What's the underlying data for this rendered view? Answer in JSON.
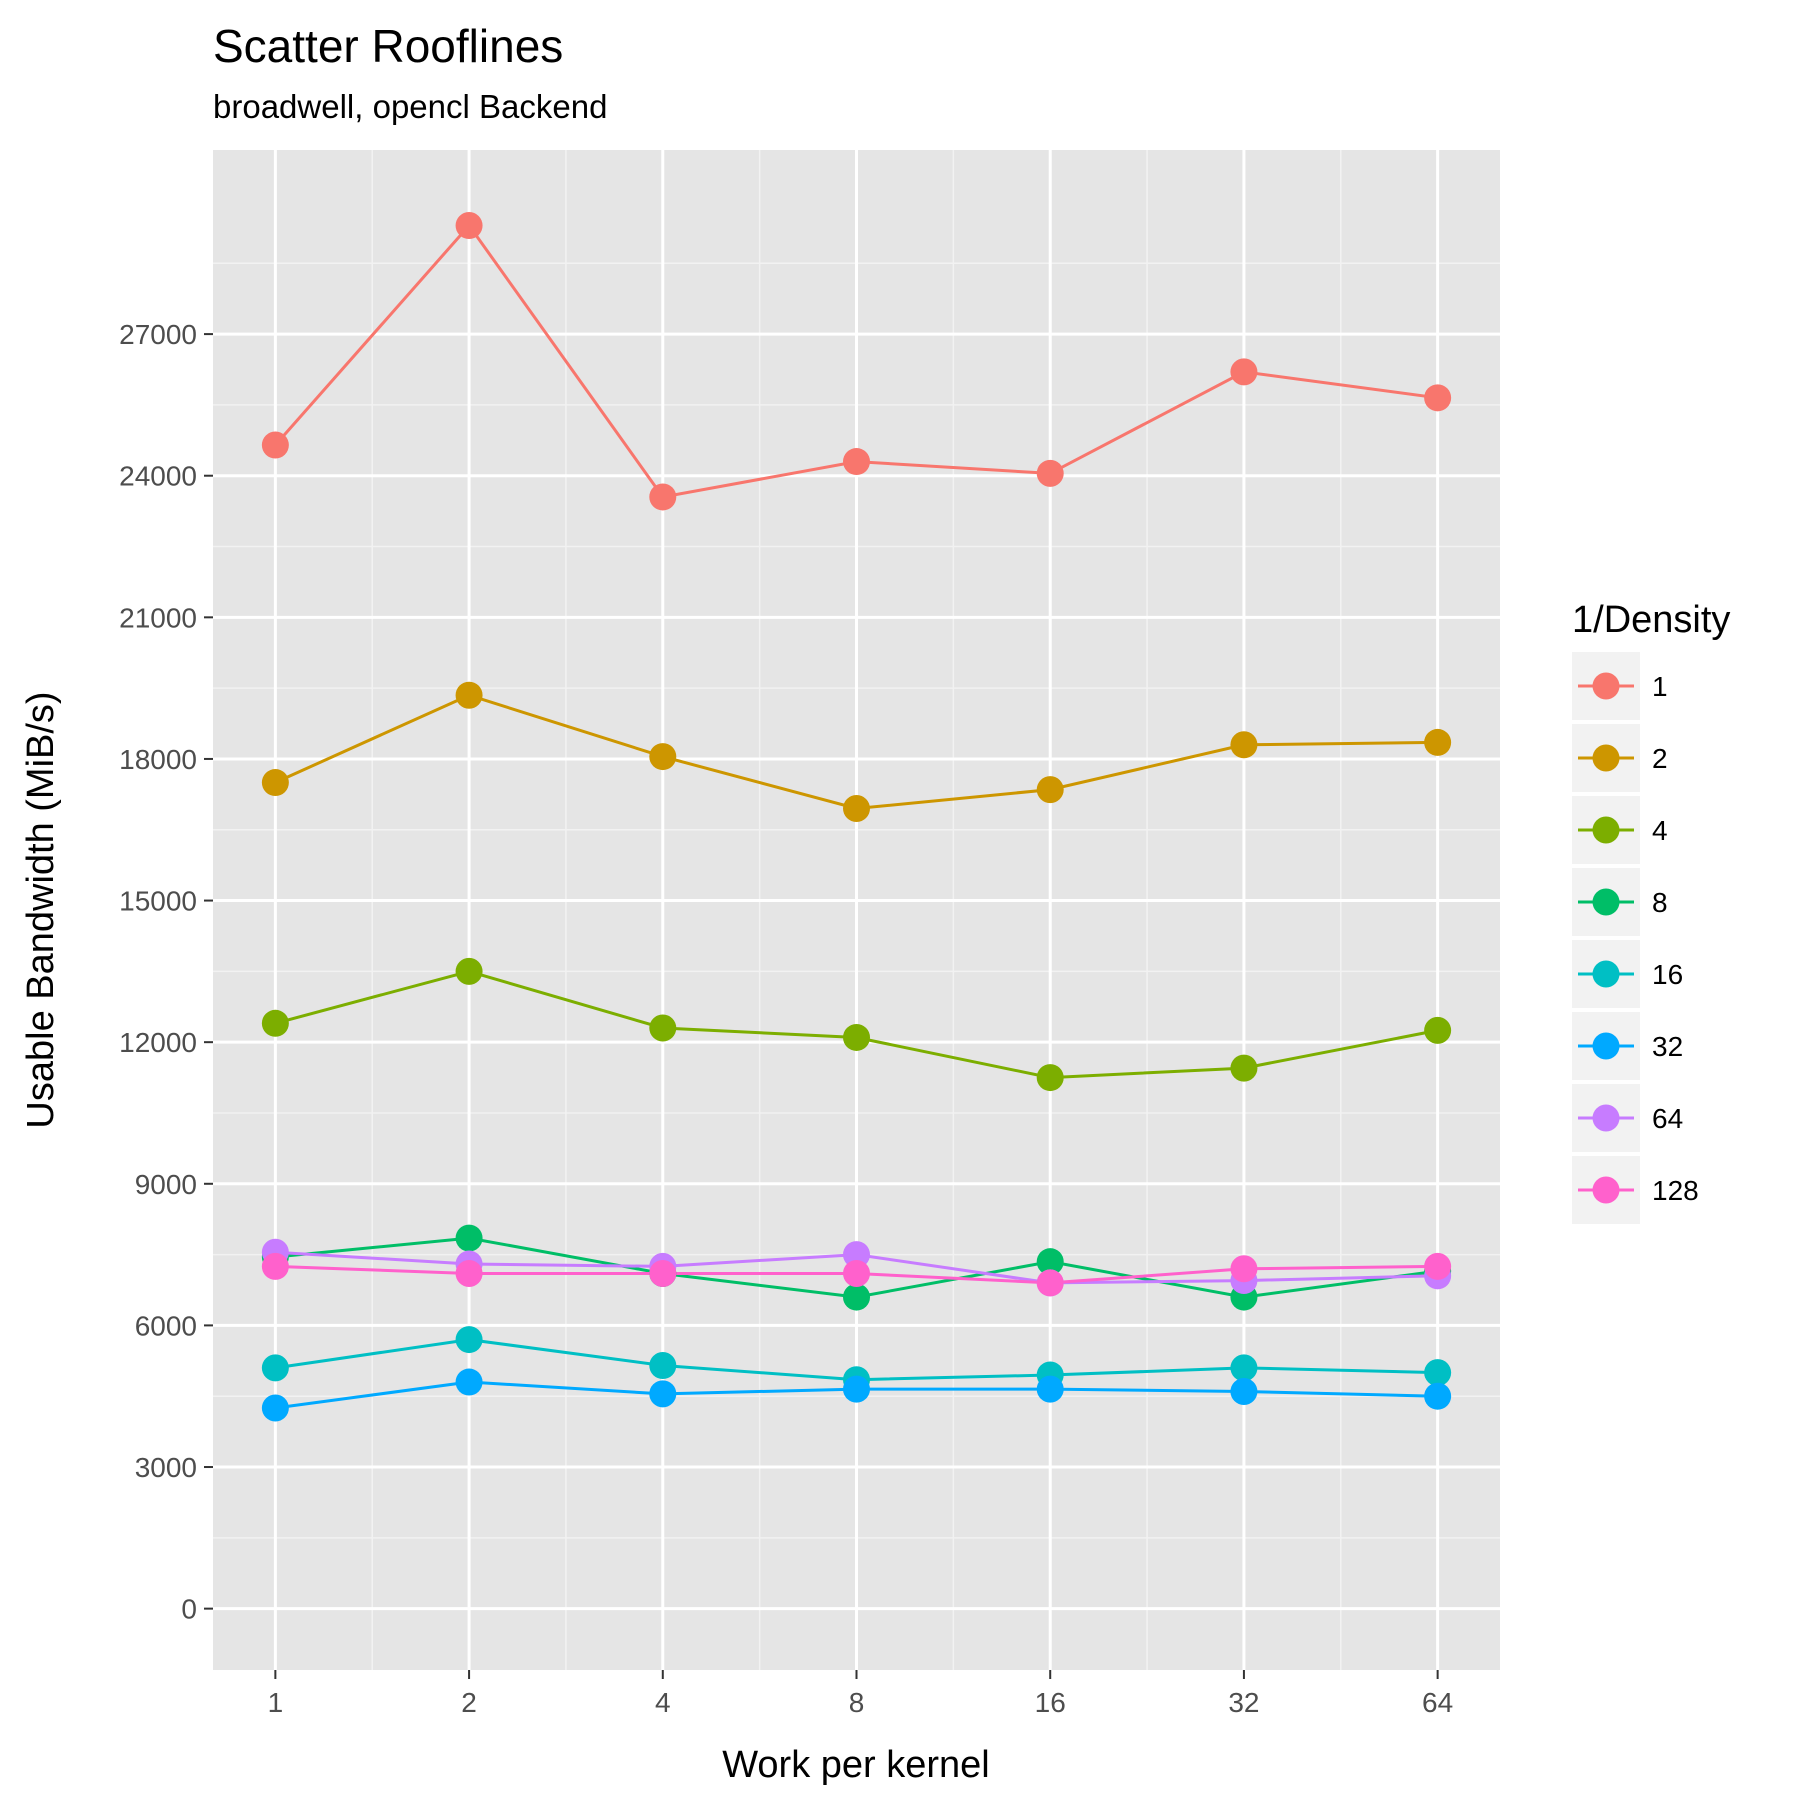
{
  "chart_data": {
    "type": "line",
    "title": "Scatter Rooflines",
    "subtitle": "broadwell, opencl Backend",
    "xlabel": "Work per kernel",
    "ylabel": "Usable Bandwidth (MiB/s)",
    "x_scale": "log2",
    "x": [
      1,
      2,
      4,
      8,
      16,
      32,
      64
    ],
    "x_tick_labels": [
      "1",
      "2",
      "4",
      "8",
      "16",
      "32",
      "64"
    ],
    "xlim": [
      0.8,
      80
    ],
    "ylim": [
      -1300,
      30900
    ],
    "y_ticks": [
      0,
      3000,
      6000,
      9000,
      12000,
      15000,
      18000,
      21000,
      24000,
      27000
    ],
    "grid": true,
    "legend_title": "1/Density",
    "legend_position": "right",
    "series": [
      {
        "name": "1",
        "color": "#F8766D",
        "values": [
          24650,
          29300,
          23550,
          24300,
          24050,
          26200,
          25650
        ]
      },
      {
        "name": "2",
        "color": "#CD9600",
        "values": [
          17500,
          19350,
          18050,
          16950,
          17350,
          18300,
          18350
        ]
      },
      {
        "name": "4",
        "color": "#7CAE00",
        "values": [
          12400,
          13500,
          12300,
          12100,
          11250,
          11450,
          12250
        ]
      },
      {
        "name": "8",
        "color": "#00BE67",
        "values": [
          7450,
          7850,
          7100,
          6600,
          7350,
          6600,
          7150
        ]
      },
      {
        "name": "16",
        "color": "#00BFC4",
        "values": [
          5100,
          5700,
          5150,
          4850,
          4950,
          5100,
          5000
        ]
      },
      {
        "name": "32",
        "color": "#00A9FF",
        "values": [
          4250,
          4800,
          4550,
          4650,
          4650,
          4600,
          4500
        ]
      },
      {
        "name": "64",
        "color": "#C77CFF",
        "values": [
          7550,
          7300,
          7250,
          7500,
          6900,
          6950,
          7050
        ]
      },
      {
        "name": "128",
        "color": "#FF61CC",
        "values": [
          7250,
          7100,
          7100,
          7100,
          6900,
          7200,
          7250
        ]
      }
    ]
  }
}
